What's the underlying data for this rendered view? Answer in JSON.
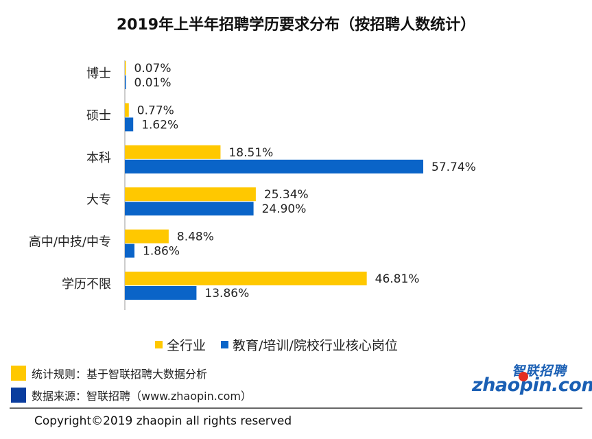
{
  "chart_data": {
    "type": "bar",
    "orientation": "horizontal",
    "title": "2019年上半年招聘学历要求分布（按招聘人数统计）",
    "categories": [
      "博士",
      "硕士",
      "本科",
      "大专",
      "高中/中技/中专",
      "学历不限"
    ],
    "series": [
      {
        "name": "全行业",
        "color": "#ffc800",
        "values": [
          0.07,
          0.77,
          18.51,
          25.34,
          8.48,
          46.81
        ],
        "labels": [
          "0.07%",
          "0.77%",
          "18.51%",
          "25.34%",
          "8.48%",
          "46.81%"
        ]
      },
      {
        "name": "教育/培训/院校行业核心岗位",
        "color": "#0a64c8",
        "values": [
          0.01,
          1.62,
          57.74,
          24.9,
          1.86,
          13.86
        ],
        "labels": [
          "0.01%",
          "1.62%",
          "57.74%",
          "24.90%",
          "1.86%",
          "13.86%"
        ]
      }
    ],
    "xlim": [
      0,
      60
    ],
    "grid": false,
    "legend_position": "bottom"
  },
  "notes": {
    "rule": "统计规则：基于智联招聘大数据分析",
    "source": "数据来源：智联招聘（www.zhaopin.com）",
    "rule_color": "#ffc800",
    "source_color": "#0a3d9e"
  },
  "logo": {
    "cn": "智联招聘",
    "en": "zhaopin.com"
  },
  "copyright": "Copyright©2019 zhaopin all rights reserved"
}
